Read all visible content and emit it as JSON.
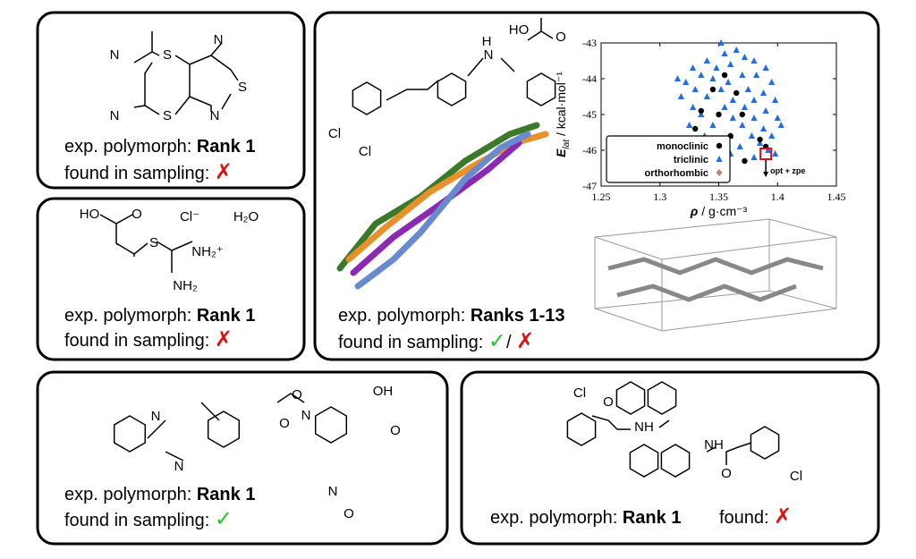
{
  "panels": [
    {
      "molecule": [
        "N",
        "S",
        "S",
        "N",
        "N",
        "S",
        "N"
      ],
      "polymorph_label": "exp. polymorph:",
      "rank": "Rank 1",
      "sampling_label": "found in sampling:",
      "result": "✗"
    },
    {
      "molecule": [
        "HO",
        "O",
        "Cl⁻",
        "H₂O",
        "S",
        "NH₂⁺",
        "NH₂"
      ],
      "polymorph_label": "exp. polymorph:",
      "rank": "Rank 1",
      "sampling_label": "found in sampling:",
      "result": "✗"
    },
    {
      "molecule": [
        "H",
        "N",
        "HO",
        "O",
        "Cl",
        "Cl"
      ],
      "polymorph_label": "exp. polymorph:",
      "rank": "Ranks 1-13",
      "sampling_label": "found in sampling:",
      "result_found": "✓",
      "separator": "/",
      "result_missing": "✗"
    },
    {
      "molecule": [
        "N",
        "N",
        "O",
        "N",
        "O",
        "OH",
        "O",
        "N",
        "O"
      ],
      "polymorph_label": "exp. polymorph:",
      "rank": "Rank 1",
      "sampling_label": "found in sampling:",
      "result": "✓"
    },
    {
      "molecule": [
        "Cl",
        "O",
        "NH",
        "NH",
        "O",
        "Cl"
      ],
      "polymorph_label": "exp. polymorph:",
      "rank": "Rank 1",
      "found_label": "found:",
      "result": "✗"
    }
  ],
  "chart_data": {
    "type": "scatter",
    "xlabel": {
      "symbol": "ρ",
      "unit": "/ g·cm⁻³"
    },
    "ylabel": {
      "symbol": "E",
      "subscript": "lat",
      "unit": "/ kcal·mol⁻¹"
    },
    "xlim": [
      1.25,
      1.45
    ],
    "xticks": [
      1.25,
      1.3,
      1.35,
      1.4,
      1.45
    ],
    "ylim": [
      -47,
      -43
    ],
    "yticks": [
      -47,
      -46,
      -45,
      -44,
      -43
    ],
    "legend": "lower left",
    "series": [
      {
        "name": "monoclinic",
        "color": "#000000",
        "marker": "circle",
        "x": [
          1.355,
          1.345,
          1.365,
          1.335,
          1.35,
          1.37,
          1.33,
          1.36,
          1.385,
          1.34,
          1.372,
          1.39
        ],
        "values": [
          -43.9,
          -44.3,
          -44.4,
          -44.9,
          -45.0,
          -45.0,
          -45.4,
          -45.6,
          -45.7,
          -46.1,
          -46.3,
          -45.9
        ]
      },
      {
        "name": "triclinic",
        "color": "#1f6fe0",
        "marker": "triangle",
        "x": [
          1.352,
          1.365,
          1.355,
          1.372,
          1.34,
          1.38,
          1.328,
          1.348,
          1.36,
          1.39,
          1.335,
          1.37,
          1.382,
          1.322,
          1.345,
          1.358,
          1.395,
          1.33,
          1.352,
          1.375,
          1.388,
          1.318,
          1.34,
          1.362,
          1.38,
          1.398,
          1.328,
          1.355,
          1.372,
          1.39,
          1.335,
          1.362,
          1.38,
          1.4,
          1.325,
          1.345,
          1.37,
          1.388,
          1.338,
          1.36,
          1.378,
          1.395,
          1.35,
          1.368,
          1.385,
          1.34,
          1.36,
          1.392,
          1.38,
          1.398,
          1.315,
          1.403
        ],
        "values": [
          -43.0,
          -43.2,
          -43.3,
          -43.4,
          -43.5,
          -43.5,
          -43.7,
          -43.7,
          -43.6,
          -43.7,
          -43.9,
          -43.9,
          -43.9,
          -44.1,
          -44.0,
          -44.1,
          -44.1,
          -44.3,
          -44.3,
          -44.3,
          -44.4,
          -44.5,
          -44.5,
          -44.6,
          -44.6,
          -44.6,
          -44.8,
          -44.8,
          -44.8,
          -44.9,
          -45.0,
          -45.1,
          -45.1,
          -45.1,
          -45.3,
          -45.3,
          -45.3,
          -45.4,
          -45.6,
          -45.6,
          -45.6,
          -45.6,
          -45.8,
          -45.9,
          -45.8,
          -46.0,
          -46.1,
          -46.0,
          -46.2,
          -46.1,
          -44.0,
          -45.3
        ]
      },
      {
        "name": "orthorhombic",
        "color": "#b08878",
        "marker": "diamond",
        "x": [],
        "values": []
      }
    ],
    "highlight": {
      "x": 1.39,
      "y": -46.1,
      "color": "#e01010",
      "annotation": "opt + zpe"
    }
  }
}
